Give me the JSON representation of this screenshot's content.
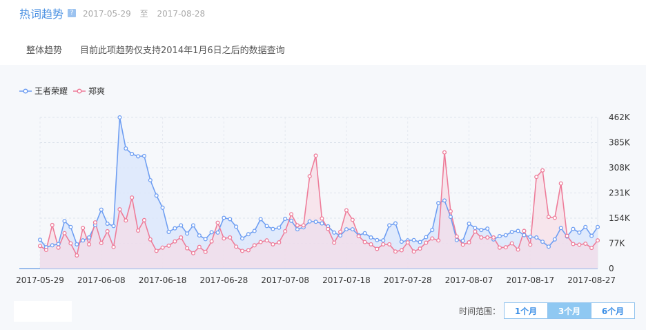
{
  "header": {
    "title": "热词趋势",
    "help_icon": "?",
    "start_date": "2017-05-29",
    "sep": "至",
    "end_date": "2017-08-28"
  },
  "subbar": {
    "tab": "整体趋势",
    "notice": "目前此项趋势仅支持2014年1月6日之后的数据查询"
  },
  "range": {
    "label": "时间范围：",
    "options": [
      "1个月",
      "3个月",
      "6个月"
    ],
    "active": "3个月"
  },
  "colors": {
    "series1": "#6e9ef2",
    "series2": "#ee7c99",
    "fill1": "#dce8fb",
    "fill2": "#f8d9e2"
  },
  "chart_data": {
    "type": "area",
    "ylim": [
      0,
      462000
    ],
    "y_ticks": [
      "0",
      "77K",
      "154K",
      "231K",
      "308K",
      "385K",
      "462K"
    ],
    "x_ticks": [
      "2017-05-29",
      "2017-06-08",
      "2017-06-18",
      "2017-06-28",
      "2017-07-08",
      "2017-07-18",
      "2017-07-28",
      "2017-08-07",
      "2017-08-17",
      "2017-08-27"
    ],
    "x_start": "2017-05-29",
    "series": [
      {
        "name": "王者荣耀",
        "values": [
          88,
          65,
          71,
          75,
          145,
          127,
          74,
          86,
          95,
          133,
          180,
          137,
          130,
          462,
          367,
          350,
          343,
          344,
          270,
          223,
          186,
          112,
          123,
          132,
          107,
          132,
          101,
          90,
          111,
          110,
          155,
          151,
          128,
          92,
          105,
          115,
          151,
          130,
          121,
          125,
          152,
          146,
          120,
          126,
          144,
          143,
          138,
          129,
          110,
          101,
          120,
          120,
          102,
          108,
          95,
          87,
          86,
          132,
          138,
          82,
          86,
          87,
          81,
          96,
          118,
          200,
          208,
          158,
          87,
          85,
          137,
          124,
          118,
          122,
          89,
          99,
          102,
          112,
          115,
          102,
          97,
          95,
          82,
          67,
          89,
          124,
          98,
          121,
          110,
          127,
          100,
          127
        ]
      },
      {
        "name": "郑爽",
        "values": [
          69,
          57,
          133,
          64,
          108,
          77,
          40,
          124,
          74,
          141,
          78,
          114,
          66,
          181,
          147,
          217,
          116,
          148,
          89,
          54,
          64,
          70,
          83,
          95,
          62,
          47,
          66,
          51,
          83,
          140,
          92,
          95,
          67,
          54,
          56,
          71,
          81,
          86,
          74,
          80,
          114,
          166,
          132,
          132,
          282,
          345,
          153,
          121,
          79,
          112,
          178,
          149,
          99,
          81,
          74,
          60,
          74,
          74,
          52,
          56,
          80,
          52,
          61,
          79,
          92,
          86,
          355,
          175,
          98,
          73,
          80,
          113,
          95,
          95,
          95,
          64,
          65,
          77,
          58,
          115,
          73,
          280,
          300,
          158,
          155,
          260,
          100,
          75,
          73,
          76,
          63,
          86
        ]
      }
    ]
  }
}
